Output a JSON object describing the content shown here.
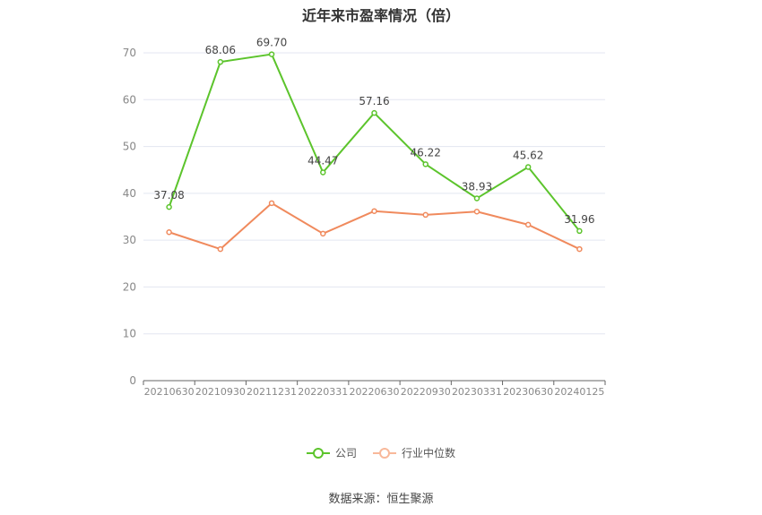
{
  "chart_data": {
    "type": "line",
    "title": "近年来市盈率情况（倍）",
    "categories": [
      "20210630",
      "20210930",
      "20211231",
      "20220331",
      "20220630",
      "20220930",
      "20230331",
      "20230630",
      "20240125"
    ],
    "ylim": [
      0,
      70
    ],
    "yticks": [
      0,
      10,
      20,
      30,
      40,
      50,
      60,
      70
    ],
    "grid": true,
    "legend_position": "bottom",
    "series": [
      {
        "name": "公司",
        "color": "#5cc42c",
        "show_labels": true,
        "values": [
          37.08,
          68.06,
          69.7,
          44.47,
          57.16,
          46.22,
          38.93,
          45.62,
          31.96
        ]
      },
      {
        "name": "行业中位数",
        "color": "#f08a5d",
        "show_labels": false,
        "values": [
          31.7,
          28.1,
          37.9,
          31.4,
          36.2,
          35.4,
          36.1,
          33.3,
          28.1
        ]
      }
    ]
  },
  "source": "数据来源：恒生聚源"
}
